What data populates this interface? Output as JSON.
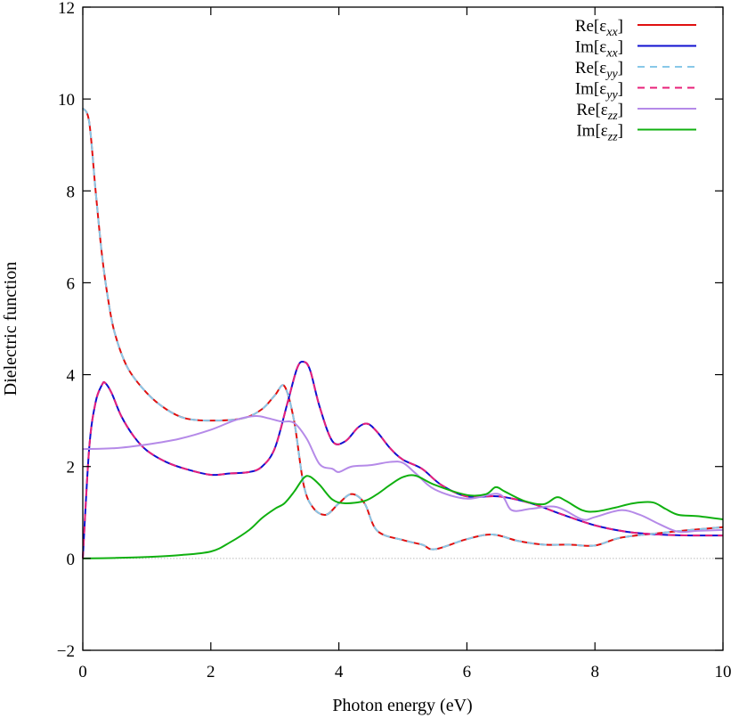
{
  "chart_data": {
    "type": "line",
    "xlabel": "Photon energy (eV)",
    "ylabel": "Dielectric function",
    "xlim": [
      0,
      10
    ],
    "ylim": [
      -2,
      12
    ],
    "xticks": [
      0,
      2,
      4,
      6,
      8,
      10
    ],
    "yticks": [
      -2,
      0,
      2,
      4,
      6,
      8,
      10,
      12
    ],
    "grid": false,
    "zero_line": {
      "y": 0,
      "color": "#bbbbbb",
      "style": "dotted"
    },
    "legend_position": "top-right",
    "series": [
      {
        "name": "Re[εxx]",
        "legend": {
          "prefix": "Re[",
          "symbol": "ε",
          "sub": "xx",
          "suffix": "]"
        },
        "color": "#e01010",
        "dash": false,
        "x": [
          0,
          0.1,
          0.2,
          0.3,
          0.4,
          0.5,
          0.7,
          1.0,
          1.3,
          1.6,
          2.0,
          2.5,
          2.8,
          3.0,
          3.15,
          3.3,
          3.45,
          3.6,
          3.8,
          4.0,
          4.2,
          4.4,
          4.6,
          5.0,
          5.3,
          5.5,
          6.0,
          6.4,
          6.8,
          7.2,
          7.6,
          8.0,
          8.4,
          9.0,
          9.5,
          10.0
        ],
        "y": [
          9.8,
          9.5,
          8.0,
          6.6,
          5.6,
          4.9,
          4.15,
          3.6,
          3.25,
          3.05,
          3.0,
          3.05,
          3.25,
          3.55,
          3.75,
          3.0,
          1.6,
          1.1,
          0.95,
          1.2,
          1.4,
          1.2,
          0.6,
          0.4,
          0.3,
          0.2,
          0.42,
          0.52,
          0.38,
          0.3,
          0.3,
          0.28,
          0.45,
          0.55,
          0.62,
          0.68
        ]
      },
      {
        "name": "Im[εxx]",
        "legend": {
          "prefix": "Im[",
          "symbol": "ε",
          "sub": "xx",
          "suffix": "]"
        },
        "color": "#1010d0",
        "dash": false,
        "x": [
          0,
          0.1,
          0.2,
          0.3,
          0.35,
          0.45,
          0.6,
          0.8,
          1.0,
          1.3,
          1.6,
          2.0,
          2.3,
          2.6,
          2.8,
          3.0,
          3.2,
          3.35,
          3.45,
          3.55,
          3.7,
          3.9,
          4.1,
          4.3,
          4.45,
          4.6,
          4.8,
          5.0,
          5.3,
          5.6,
          6.0,
          6.5,
          7.0,
          7.5,
          8.0,
          8.5,
          9.0,
          9.5,
          10.0
        ],
        "y": [
          0.0,
          2.4,
          3.4,
          3.78,
          3.82,
          3.6,
          3.1,
          2.65,
          2.35,
          2.1,
          1.95,
          1.82,
          1.85,
          1.88,
          2.0,
          2.4,
          3.4,
          4.15,
          4.28,
          4.1,
          3.3,
          2.55,
          2.55,
          2.85,
          2.93,
          2.75,
          2.4,
          2.15,
          1.95,
          1.6,
          1.35,
          1.35,
          1.2,
          0.95,
          0.72,
          0.58,
          0.52,
          0.5,
          0.5
        ]
      },
      {
        "name": "Re[εyy]",
        "legend": {
          "prefix": "Re[",
          "symbol": "ε",
          "sub": "yy",
          "suffix": "]"
        },
        "color": "#88c8e8",
        "dash": true,
        "x": [
          0,
          0.1,
          0.2,
          0.3,
          0.4,
          0.5,
          0.7,
          1.0,
          1.3,
          1.6,
          2.0,
          2.5,
          2.8,
          3.0,
          3.15,
          3.3,
          3.45,
          3.6,
          3.8,
          4.0,
          4.2,
          4.4,
          4.6,
          5.0,
          5.3,
          5.5,
          6.0,
          6.4,
          6.8,
          7.2,
          7.6,
          8.0,
          8.4,
          9.0,
          9.5,
          10.0
        ],
        "y": [
          9.8,
          9.5,
          8.0,
          6.6,
          5.6,
          4.9,
          4.15,
          3.6,
          3.25,
          3.05,
          3.0,
          3.05,
          3.25,
          3.55,
          3.75,
          3.0,
          1.6,
          1.1,
          0.95,
          1.2,
          1.4,
          1.2,
          0.6,
          0.4,
          0.3,
          0.2,
          0.42,
          0.52,
          0.38,
          0.3,
          0.3,
          0.28,
          0.45,
          0.55,
          0.62,
          0.68
        ]
      },
      {
        "name": "Im[εyy]",
        "legend": {
          "prefix": "Im[",
          "symbol": "ε",
          "sub": "yy",
          "suffix": "]"
        },
        "color": "#e8207a",
        "dash": true,
        "x": [
          0,
          0.1,
          0.2,
          0.3,
          0.35,
          0.45,
          0.6,
          0.8,
          1.0,
          1.3,
          1.6,
          2.0,
          2.3,
          2.6,
          2.8,
          3.0,
          3.2,
          3.35,
          3.45,
          3.55,
          3.7,
          3.9,
          4.1,
          4.3,
          4.45,
          4.6,
          4.8,
          5.0,
          5.3,
          5.6,
          6.0,
          6.5,
          7.0,
          7.5,
          8.0,
          8.5,
          9.0,
          9.5,
          10.0
        ],
        "y": [
          0.0,
          2.4,
          3.4,
          3.78,
          3.82,
          3.6,
          3.1,
          2.65,
          2.35,
          2.1,
          1.95,
          1.82,
          1.85,
          1.88,
          2.0,
          2.4,
          3.4,
          4.15,
          4.28,
          4.1,
          3.3,
          2.55,
          2.55,
          2.85,
          2.93,
          2.75,
          2.4,
          2.15,
          1.95,
          1.6,
          1.35,
          1.35,
          1.2,
          0.95,
          0.72,
          0.58,
          0.52,
          0.5,
          0.5
        ]
      },
      {
        "name": "Re[εzz]",
        "legend": {
          "prefix": "Re[",
          "symbol": "ε",
          "sub": "zz",
          "suffix": "]"
        },
        "color": "#b58ae8",
        "dash": false,
        "x": [
          0,
          0.5,
          1.0,
          1.5,
          2.0,
          2.4,
          2.7,
          2.9,
          3.1,
          3.3,
          3.5,
          3.7,
          3.9,
          4.0,
          4.2,
          4.5,
          4.8,
          5.0,
          5.2,
          5.5,
          6.0,
          6.5,
          6.7,
          7.0,
          7.4,
          7.8,
          8.0,
          8.4,
          8.7,
          9.0,
          9.3,
          9.6,
          10.0
        ],
        "y": [
          2.38,
          2.4,
          2.48,
          2.6,
          2.8,
          3.02,
          3.1,
          3.05,
          2.98,
          2.95,
          2.6,
          2.05,
          1.95,
          1.88,
          2.0,
          2.03,
          2.1,
          2.08,
          1.85,
          1.5,
          1.3,
          1.4,
          1.05,
          1.08,
          1.12,
          0.85,
          0.9,
          1.05,
          0.95,
          0.75,
          0.58,
          0.6,
          0.62
        ]
      },
      {
        "name": "Im[εzz]",
        "legend": {
          "prefix": "Im[",
          "symbol": "ε",
          "sub": "zz",
          "suffix": "]"
        },
        "color": "#10b010",
        "dash": false,
        "x": [
          0,
          0.5,
          1.0,
          1.5,
          2.0,
          2.3,
          2.6,
          2.8,
          3.0,
          3.15,
          3.3,
          3.45,
          3.55,
          3.7,
          3.9,
          4.1,
          4.4,
          4.6,
          4.8,
          5.0,
          5.2,
          5.5,
          6.0,
          6.3,
          6.45,
          6.6,
          6.9,
          7.2,
          7.4,
          7.55,
          7.8,
          8.0,
          8.3,
          8.6,
          8.9,
          9.1,
          9.3,
          9.6,
          10.0
        ],
        "y": [
          0.0,
          0.01,
          0.03,
          0.07,
          0.15,
          0.35,
          0.62,
          0.88,
          1.08,
          1.2,
          1.45,
          1.75,
          1.78,
          1.6,
          1.28,
          1.2,
          1.25,
          1.4,
          1.6,
          1.77,
          1.8,
          1.6,
          1.38,
          1.4,
          1.55,
          1.45,
          1.25,
          1.18,
          1.33,
          1.25,
          1.05,
          1.02,
          1.1,
          1.2,
          1.22,
          1.08,
          0.95,
          0.92,
          0.85
        ]
      }
    ]
  }
}
